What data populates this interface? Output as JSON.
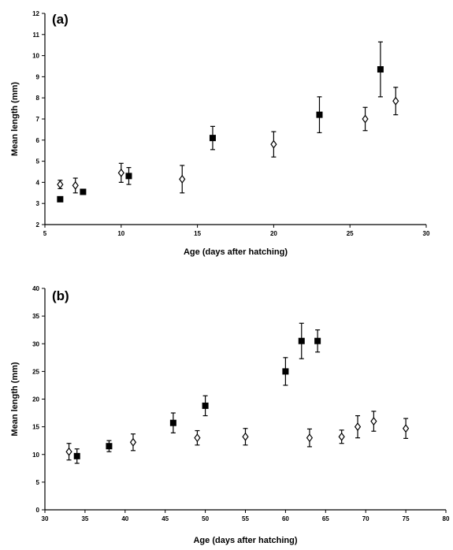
{
  "chart_data": [
    {
      "type": "scatter",
      "panel_label": "(a)",
      "xlabel": "Age (days after hatching)",
      "ylabel": "Mean length (mm)",
      "xlim": [
        5,
        30
      ],
      "ylim": [
        2,
        12
      ],
      "xticks": [
        5,
        10,
        15,
        20,
        25,
        30
      ],
      "yticks": [
        2,
        3,
        4,
        5,
        6,
        7,
        8,
        9,
        10,
        11,
        12
      ],
      "grid": false,
      "series": [
        {
          "marker": "diamond-open",
          "points": [
            {
              "x": 6,
              "y": 3.9,
              "err": 0.2
            },
            {
              "x": 7,
              "y": 3.85,
              "err": 0.35
            },
            {
              "x": 10,
              "y": 4.45,
              "err": 0.45
            },
            {
              "x": 14,
              "y": 4.15,
              "err": 0.65
            },
            {
              "x": 20,
              "y": 5.8,
              "err": 0.6
            },
            {
              "x": 26,
              "y": 7.0,
              "err": 0.55
            },
            {
              "x": 28,
              "y": 7.85,
              "err": 0.65
            }
          ]
        },
        {
          "marker": "square-filled",
          "points": [
            {
              "x": 6,
              "y": 3.2,
              "err": 0.1
            },
            {
              "x": 7.5,
              "y": 3.55,
              "err": 0.1
            },
            {
              "x": 10.5,
              "y": 4.3,
              "err": 0.4
            },
            {
              "x": 16,
              "y": 6.1,
              "err": 0.55
            },
            {
              "x": 23,
              "y": 7.2,
              "err": 0.85
            },
            {
              "x": 27,
              "y": 9.35,
              "err": 1.3
            }
          ]
        }
      ]
    },
    {
      "type": "scatter",
      "panel_label": "(b)",
      "xlabel": "Age (days after hatching)",
      "ylabel": "Mean length (mm)",
      "xlim": [
        30,
        80
      ],
      "ylim": [
        0,
        40
      ],
      "xticks": [
        30,
        35,
        40,
        45,
        50,
        55,
        60,
        65,
        70,
        75,
        80
      ],
      "yticks": [
        0,
        5,
        10,
        15,
        20,
        25,
        30,
        35,
        40
      ],
      "grid": false,
      "series": [
        {
          "marker": "diamond-open",
          "points": [
            {
              "x": 33,
              "y": 10.5,
              "err": 1.5
            },
            {
              "x": 41,
              "y": 12.2,
              "err": 1.5
            },
            {
              "x": 49,
              "y": 13.0,
              "err": 1.3
            },
            {
              "x": 55,
              "y": 13.2,
              "err": 1.5
            },
            {
              "x": 63,
              "y": 13.0,
              "err": 1.6
            },
            {
              "x": 67,
              "y": 13.2,
              "err": 1.2
            },
            {
              "x": 69,
              "y": 15.0,
              "err": 2.0
            },
            {
              "x": 71,
              "y": 16.0,
              "err": 1.8
            },
            {
              "x": 75,
              "y": 14.7,
              "err": 1.8
            }
          ]
        },
        {
          "marker": "square-filled",
          "points": [
            {
              "x": 34,
              "y": 9.7,
              "err": 1.3
            },
            {
              "x": 38,
              "y": 11.5,
              "err": 1.0
            },
            {
              "x": 46,
              "y": 15.7,
              "err": 1.8
            },
            {
              "x": 50,
              "y": 18.8,
              "err": 1.8
            },
            {
              "x": 60,
              "y": 25.0,
              "err": 2.5
            },
            {
              "x": 62,
              "y": 30.5,
              "err": 3.2
            },
            {
              "x": 64,
              "y": 30.5,
              "err": 2.0
            }
          ]
        }
      ]
    }
  ]
}
